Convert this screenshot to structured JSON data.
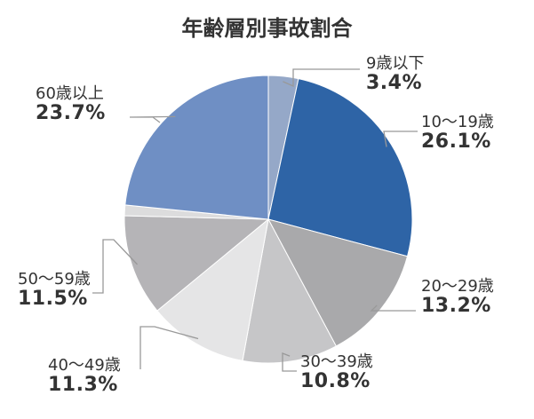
{
  "chart_data": {
    "type": "pie",
    "title": "年齢層別事故割合",
    "slices": [
      {
        "name": "9歳以下",
        "label": "9歳以下",
        "value": 3.4,
        "value_label": "3.4%",
        "color": "#95a8c8"
      },
      {
        "name": "10〜19歳",
        "label": "10〜19歳",
        "value": 26.1,
        "value_label": "26.1%",
        "color": "#2e64a6"
      },
      {
        "name": "20〜29歳",
        "label": "20〜29歳",
        "value": 13.2,
        "value_label": "13.2%",
        "color": "#a9a9ab"
      },
      {
        "name": "30〜39歳",
        "label": "30〜39歳",
        "value": 10.8,
        "value_label": "10.8%",
        "color": "#c6c6c8"
      },
      {
        "name": "40〜49歳",
        "label": "40〜49歳",
        "value": 11.3,
        "value_label": "11.3%",
        "color": "#e5e5e6"
      },
      {
        "name": "50〜59歳",
        "label": "50〜59歳",
        "value": 11.5,
        "value_label": "11.5%",
        "color": "#b5b4b7"
      },
      {
        "name": "unlabeled",
        "label": "",
        "value": 1.2,
        "value_label": "",
        "color": "#dcdcdd"
      },
      {
        "name": "60歳以上",
        "label": "60歳以上",
        "value": 23.7,
        "value_label": "23.7%",
        "color": "#6f8fc4"
      }
    ],
    "start_angle_deg": 0,
    "direction": "clockwise",
    "legend": "none",
    "leader_line_color": "#999999"
  }
}
